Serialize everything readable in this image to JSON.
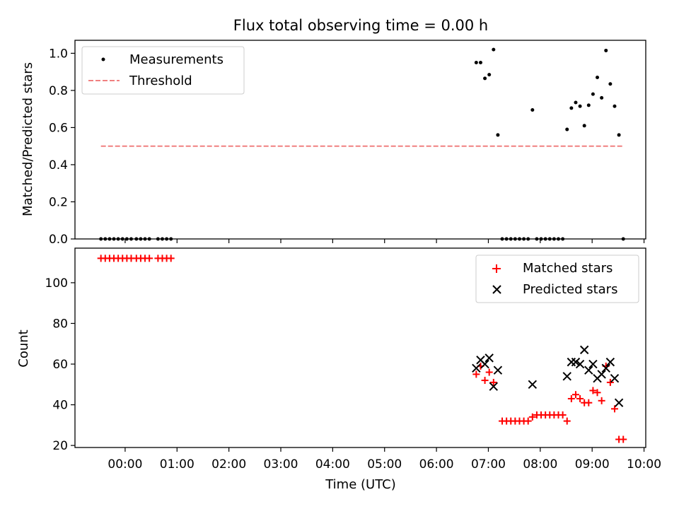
{
  "chart_data": [
    {
      "type": "scatter",
      "title": "Flux total observing time = 0.00 h",
      "ylabel": "Matched/Predicted stars",
      "xlabel": "",
      "xlim": [
        "-00:58",
        "10:02"
      ],
      "ylim": [
        0.0,
        1.07
      ],
      "yticks": [
        "0.0",
        "0.2",
        "0.4",
        "0.6",
        "0.8",
        "1.0"
      ],
      "grid": false,
      "legend_position": "top-left",
      "series": [
        {
          "name": "Measurements",
          "marker": "dot",
          "color": "#000000",
          "points": [
            [
              "-00:28",
              0.0
            ],
            [
              "-00:23",
              0.0
            ],
            [
              "-00:18",
              0.0
            ],
            [
              "-00:13",
              0.0
            ],
            [
              "-00:08",
              0.0
            ],
            [
              "-00:03",
              0.0
            ],
            [
              "00:02",
              0.0
            ],
            [
              "00:07",
              0.0
            ],
            [
              "00:13",
              0.0
            ],
            [
              "00:18",
              0.0
            ],
            [
              "00:23",
              0.0
            ],
            [
              "00:28",
              0.0
            ],
            [
              "00:38",
              0.0
            ],
            [
              "00:43",
              0.0
            ],
            [
              "00:48",
              0.0
            ],
            [
              "00:53",
              0.0
            ],
            [
              "06:46",
              0.95
            ],
            [
              "06:51",
              0.95
            ],
            [
              "06:56",
              0.865
            ],
            [
              "07:01",
              0.885
            ],
            [
              "07:06",
              1.02
            ],
            [
              "07:11",
              0.56
            ],
            [
              "07:16",
              0.0
            ],
            [
              "07:21",
              0.0
            ],
            [
              "07:26",
              0.0
            ],
            [
              "07:31",
              0.0
            ],
            [
              "07:36",
              0.0
            ],
            [
              "07:41",
              0.0
            ],
            [
              "07:46",
              0.0
            ],
            [
              "07:51",
              0.695
            ],
            [
              "07:56",
              0.0
            ],
            [
              "08:01",
              0.0
            ],
            [
              "08:06",
              0.0
            ],
            [
              "08:11",
              0.0
            ],
            [
              "08:16",
              0.0
            ],
            [
              "08:21",
              0.0
            ],
            [
              "08:26",
              0.0
            ],
            [
              "08:31",
              0.59
            ],
            [
              "08:36",
              0.705
            ],
            [
              "08:41",
              0.735
            ],
            [
              "08:46",
              0.715
            ],
            [
              "08:51",
              0.61
            ],
            [
              "08:56",
              0.72
            ],
            [
              "09:01",
              0.78
            ],
            [
              "09:06",
              0.87
            ],
            [
              "09:11",
              0.76
            ],
            [
              "09:16",
              1.015
            ],
            [
              "09:21",
              0.835
            ],
            [
              "09:26",
              0.715
            ],
            [
              "09:31",
              0.56
            ],
            [
              "09:36",
              0.0
            ]
          ]
        },
        {
          "name": "Threshold",
          "marker": "dashed-line",
          "color": "#f08080",
          "points": [
            [
              "-00:28",
              0.5
            ],
            [
              "09:36",
              0.5
            ]
          ]
        }
      ]
    },
    {
      "type": "scatter",
      "title": "",
      "xlabel": "Time (UTC)",
      "ylabel": "Count",
      "xlim": [
        "-00:58",
        "10:02"
      ],
      "ylim": [
        19,
        117
      ],
      "xticks": [
        "00:00",
        "01:00",
        "02:00",
        "03:00",
        "04:00",
        "05:00",
        "06:00",
        "07:00",
        "08:00",
        "09:00",
        "10:00"
      ],
      "yticks": [
        "20",
        "40",
        "60",
        "80",
        "100"
      ],
      "grid": false,
      "legend_position": "top-right",
      "series": [
        {
          "name": "Matched stars",
          "marker": "plus",
          "color": "#ff0000",
          "points": [
            [
              "-00:28",
              112
            ],
            [
              "-00:23",
              112
            ],
            [
              "-00:18",
              112
            ],
            [
              "-00:13",
              112
            ],
            [
              "-00:08",
              112
            ],
            [
              "-00:03",
              112
            ],
            [
              "00:02",
              112
            ],
            [
              "00:07",
              112
            ],
            [
              "00:13",
              112
            ],
            [
              "00:18",
              112
            ],
            [
              "00:23",
              112
            ],
            [
              "00:28",
              112
            ],
            [
              "00:38",
              112
            ],
            [
              "00:43",
              112
            ],
            [
              "00:48",
              112
            ],
            [
              "00:53",
              112
            ],
            [
              "06:46",
              55
            ],
            [
              "06:51",
              59
            ],
            [
              "06:56",
              52
            ],
            [
              "07:01",
              56
            ],
            [
              "07:06",
              51
            ],
            [
              "07:16",
              32
            ],
            [
              "07:21",
              32
            ],
            [
              "07:26",
              32
            ],
            [
              "07:31",
              32
            ],
            [
              "07:36",
              32
            ],
            [
              "07:41",
              32
            ],
            [
              "07:46",
              32
            ],
            [
              "07:51",
              34
            ],
            [
              "07:56",
              35
            ],
            [
              "08:01",
              35
            ],
            [
              "08:06",
              35
            ],
            [
              "08:11",
              35
            ],
            [
              "08:16",
              35
            ],
            [
              "08:21",
              35
            ],
            [
              "08:26",
              35
            ],
            [
              "08:31",
              32
            ],
            [
              "08:36",
              43
            ],
            [
              "08:41",
              45
            ],
            [
              "08:46",
              43
            ],
            [
              "08:51",
              41
            ],
            [
              "08:56",
              41
            ],
            [
              "09:01",
              47
            ],
            [
              "09:06",
              46
            ],
            [
              "09:11",
              42
            ],
            [
              "09:16",
              59
            ],
            [
              "09:21",
              51
            ],
            [
              "09:26",
              38
            ],
            [
              "09:31",
              23
            ],
            [
              "09:36",
              23
            ]
          ]
        },
        {
          "name": "Predicted stars",
          "marker": "x",
          "color": "#000000",
          "points": [
            [
              "06:46",
              58
            ],
            [
              "06:51",
              62
            ],
            [
              "06:56",
              60
            ],
            [
              "07:01",
              63
            ],
            [
              "07:06",
              49
            ],
            [
              "07:11",
              57
            ],
            [
              "07:51",
              50
            ],
            [
              "08:31",
              54
            ],
            [
              "08:36",
              61
            ],
            [
              "08:41",
              61
            ],
            [
              "08:46",
              60
            ],
            [
              "08:51",
              67
            ],
            [
              "08:56",
              57
            ],
            [
              "09:01",
              60
            ],
            [
              "09:06",
              53
            ],
            [
              "09:11",
              55
            ],
            [
              "09:16",
              58
            ],
            [
              "09:21",
              61
            ],
            [
              "09:26",
              53
            ],
            [
              "09:31",
              41
            ]
          ]
        }
      ]
    }
  ]
}
